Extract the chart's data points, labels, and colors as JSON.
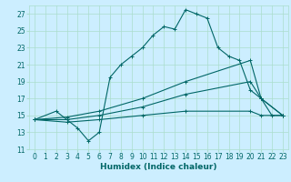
{
  "xlabel": "Humidex (Indice chaleur)",
  "bg_color": "#cceeff",
  "grid_color": "#aaddcc",
  "line_color": "#006666",
  "xlim": [
    -0.5,
    23.5
  ],
  "ylim": [
    11,
    28
  ],
  "xticks": [
    0,
    1,
    2,
    3,
    4,
    5,
    6,
    7,
    8,
    9,
    10,
    11,
    12,
    13,
    14,
    15,
    16,
    17,
    18,
    19,
    20,
    21,
    22,
    23
  ],
  "yticks": [
    11,
    13,
    15,
    17,
    19,
    21,
    23,
    25,
    27
  ],
  "lines": [
    {
      "x": [
        0,
        2,
        3,
        4,
        5,
        6,
        7,
        8,
        9,
        10,
        11,
        12,
        13,
        14,
        15,
        16,
        17,
        18,
        19,
        20,
        21,
        22,
        23
      ],
      "y": [
        14.5,
        15.5,
        14.5,
        13.5,
        12.0,
        13.0,
        19.5,
        21.0,
        22.0,
        23.0,
        24.5,
        25.5,
        25.2,
        27.5,
        27.0,
        26.5,
        23.0,
        22.0,
        21.5,
        18.0,
        17.0,
        15.0,
        15.0
      ]
    },
    {
      "x": [
        0,
        3,
        6,
        10,
        14,
        20,
        21,
        23
      ],
      "y": [
        14.5,
        14.8,
        15.5,
        17.0,
        19.0,
        21.5,
        17.0,
        15.0
      ]
    },
    {
      "x": [
        0,
        3,
        6,
        10,
        14,
        20,
        21,
        23
      ],
      "y": [
        14.5,
        14.5,
        15.0,
        16.0,
        17.5,
        19.0,
        17.0,
        15.0
      ]
    },
    {
      "x": [
        0,
        3,
        6,
        10,
        14,
        20,
        21,
        23
      ],
      "y": [
        14.5,
        14.2,
        14.5,
        15.0,
        15.5,
        15.5,
        15.0,
        15.0
      ]
    }
  ],
  "tick_fontsize": 5.5,
  "xlabel_fontsize": 6.5
}
